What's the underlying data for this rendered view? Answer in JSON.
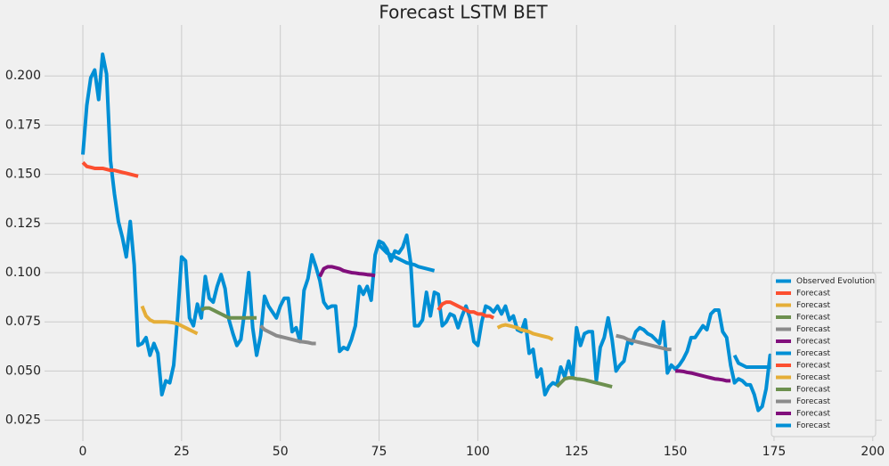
{
  "chart_data": {
    "type": "line",
    "title": "Forecast LSTM BET",
    "xlim": [
      -9.7,
      202.3
    ],
    "xticks": [
      0,
      25,
      50,
      75,
      100,
      125,
      150,
      175,
      200
    ],
    "ylim": [
      0.0144,
      0.2259
    ],
    "yticks": [
      0.025,
      {
        "value": 0.05,
        "label": "0.050"
      },
      0.075,
      {
        "value": 0.1,
        "label": "0.100"
      },
      0.125,
      {
        "value": 0.15,
        "label": "0.150"
      },
      0.175,
      {
        "value": 0.2,
        "label": "0.200"
      }
    ],
    "grid": true,
    "legend": "lower right",
    "series": [
      {
        "name": "Observed Evolution",
        "color": "#008fd5",
        "x": [
          0,
          1,
          2,
          3,
          4,
          5,
          6,
          7,
          8,
          9,
          10,
          11,
          12,
          13,
          14,
          15,
          16,
          17,
          18,
          19,
          20,
          21,
          22,
          23,
          24,
          25,
          26,
          27,
          28,
          29,
          30,
          31,
          32,
          33,
          34,
          35,
          36,
          37,
          38,
          39,
          40,
          41,
          42,
          43,
          44,
          45,
          46,
          47,
          48,
          49,
          50,
          51,
          52,
          53,
          54,
          55,
          56,
          57,
          58,
          59,
          60,
          61,
          62,
          63,
          64,
          65,
          66,
          67,
          68,
          69,
          70,
          71,
          72,
          73,
          74,
          75,
          76,
          77,
          78,
          79,
          80,
          81,
          82,
          83,
          84,
          85,
          86,
          87,
          88,
          89,
          90,
          91,
          92,
          93,
          94,
          95,
          96,
          97,
          98,
          99,
          100,
          101,
          102,
          103,
          104,
          105,
          106,
          107,
          108,
          109,
          110,
          111,
          112,
          113,
          114,
          115,
          116,
          117,
          118,
          119,
          120,
          121,
          122,
          123,
          124,
          125,
          126,
          127,
          128,
          129,
          130,
          131,
          132,
          133,
          134,
          135,
          136,
          137,
          138,
          139,
          140,
          141,
          142,
          143,
          144,
          145,
          146,
          147,
          148,
          149,
          150,
          151,
          152,
          153,
          154,
          155,
          156,
          157,
          158,
          159,
          160,
          161,
          162,
          163,
          164,
          165,
          166,
          167,
          168,
          169,
          170,
          171,
          172,
          173,
          174,
          175,
          176,
          177,
          178,
          179,
          180,
          181,
          182,
          183,
          184,
          185,
          186,
          187,
          188,
          189,
          190,
          191,
          192
        ],
        "values": [
          0.16,
          0.185,
          0.199,
          0.203,
          0.188,
          0.211,
          0.201,
          0.157,
          0.14,
          0.126,
          0.118,
          0.108,
          0.126,
          0.104,
          0.063,
          0.064,
          0.067,
          0.058,
          0.064,
          0.059,
          0.038,
          0.045,
          0.044,
          0.053,
          0.078,
          0.108,
          0.106,
          0.077,
          0.073,
          0.084,
          0.077,
          0.098,
          0.087,
          0.085,
          0.093,
          0.099,
          0.092,
          0.076,
          0.069,
          0.063,
          0.066,
          0.081,
          0.1,
          0.072,
          0.058,
          0.068,
          0.088,
          0.083,
          0.08,
          0.077,
          0.083,
          0.087,
          0.087,
          0.07,
          0.072,
          0.065,
          0.091,
          0.097,
          0.109,
          0.103,
          0.096,
          0.085,
          0.082,
          0.083,
          0.083,
          0.06,
          0.062,
          0.061,
          0.066,
          0.073,
          0.093,
          0.089,
          0.093,
          0.086,
          0.109,
          0.116,
          0.115,
          0.112,
          0.106,
          0.111,
          0.11,
          0.113,
          0.119,
          0.105,
          0.073,
          0.073,
          0.076,
          0.09,
          0.078,
          0.09,
          0.089,
          0.073,
          0.075,
          0.079,
          0.078,
          0.072,
          0.078,
          0.083,
          0.077,
          0.065,
          0.063,
          0.075,
          0.083,
          0.082,
          0.08,
          0.083,
          0.079,
          0.083,
          0.076,
          0.078,
          0.071,
          0.07,
          0.076,
          0.059,
          0.061,
          0.047,
          0.051,
          0.038,
          0.042,
          0.044,
          0.043,
          0.052,
          0.047,
          0.055,
          0.047,
          0.072,
          0.063,
          0.069,
          0.07,
          0.07,
          0.045,
          0.062,
          0.067,
          0.077,
          0.066,
          0.05,
          0.053,
          0.055,
          0.065,
          0.064,
          0.07,
          0.072,
          0.071,
          0.069,
          0.068,
          0.066,
          0.064,
          0.075,
          0.049,
          0.053,
          0.051,
          0.053,
          0.056,
          0.06,
          0.067,
          0.067,
          0.07,
          0.073,
          0.071,
          0.079,
          0.081,
          0.081,
          0.07,
          0.067,
          0.053,
          0.044,
          0.046,
          0.045,
          0.043,
          0.043,
          0.038,
          0.03,
          0.032,
          0.041,
          0.058,
          0.05,
          0.036,
          0.039,
          0.044,
          0.05,
          0.054,
          0.053,
          0.06,
          0.058,
          0.059,
          0.06,
          0.064,
          0.052,
          0.044,
          0.042,
          0.038,
          0.036,
          0.025
        ]
      },
      {
        "name": "Forecast",
        "color": "#fc4f30",
        "x": [
          0,
          1,
          2,
          3,
          4,
          5,
          6,
          7,
          8,
          9,
          10,
          11,
          12,
          13,
          14
        ],
        "values": [
          0.156,
          0.154,
          0.1535,
          0.153,
          0.153,
          0.153,
          0.1525,
          0.152,
          0.152,
          0.1515,
          0.151,
          0.1505,
          0.15,
          0.1495,
          0.149
        ]
      },
      {
        "name": "Forecast",
        "color": "#e5ae38",
        "x": [
          15,
          16,
          17,
          18,
          19,
          20,
          21,
          22,
          23,
          24,
          25,
          26,
          27,
          28,
          29
        ],
        "values": [
          0.083,
          0.078,
          0.076,
          0.075,
          0.075,
          0.075,
          0.075,
          0.0748,
          0.0745,
          0.074,
          0.073,
          0.072,
          0.071,
          0.07,
          0.069
        ]
      },
      {
        "name": "Forecast",
        "color": "#6d904f",
        "x": [
          30,
          31,
          32,
          33,
          34,
          35,
          36,
          37,
          38,
          39,
          40,
          41,
          42,
          43,
          44
        ],
        "values": [
          0.081,
          0.082,
          0.082,
          0.081,
          0.08,
          0.079,
          0.078,
          0.077,
          0.077,
          0.077,
          0.077,
          0.077,
          0.077,
          0.077,
          0.077
        ]
      },
      {
        "name": "Forecast",
        "color": "#8b8b8b",
        "x": [
          45,
          46,
          47,
          48,
          49,
          50,
          51,
          52,
          53,
          54,
          55,
          56,
          57,
          58,
          59
        ],
        "values": [
          0.073,
          0.071,
          0.07,
          0.069,
          0.068,
          0.0675,
          0.067,
          0.0665,
          0.066,
          0.0655,
          0.065,
          0.0648,
          0.0645,
          0.064,
          0.064
        ]
      },
      {
        "name": "Forecast",
        "color": "#810f7c",
        "x": [
          60,
          61,
          62,
          63,
          64,
          65,
          66,
          67,
          68,
          69,
          70,
          71,
          72,
          73,
          74
        ],
        "values": [
          0.098,
          0.102,
          0.103,
          0.103,
          0.1025,
          0.102,
          0.101,
          0.1005,
          0.1,
          0.0998,
          0.0995,
          0.0993,
          0.099,
          0.0988,
          0.0985
        ]
      },
      {
        "name": "Forecast",
        "color": "#008fd5",
        "x": [
          75,
          76,
          77,
          78,
          79,
          80,
          81,
          82,
          83,
          84,
          85,
          86,
          87,
          88,
          89
        ],
        "values": [
          0.114,
          0.112,
          0.11,
          0.109,
          0.108,
          0.107,
          0.106,
          0.105,
          0.1045,
          0.104,
          0.103,
          0.1025,
          0.102,
          0.1015,
          0.101
        ]
      },
      {
        "name": "Forecast",
        "color": "#fc4f30",
        "x": [
          90,
          91,
          92,
          93,
          94,
          95,
          96,
          97,
          98,
          99,
          100,
          101,
          102,
          103,
          104
        ],
        "values": [
          0.081,
          0.084,
          0.085,
          0.085,
          0.084,
          0.083,
          0.082,
          0.081,
          0.08,
          0.08,
          0.079,
          0.079,
          0.078,
          0.078,
          0.077
        ]
      },
      {
        "name": "Forecast",
        "color": "#e5ae38",
        "x": [
          105,
          106,
          107,
          108,
          109,
          110,
          111,
          112,
          113,
          114,
          115,
          116,
          117,
          118,
          119
        ],
        "values": [
          0.072,
          0.073,
          0.0735,
          0.073,
          0.0725,
          0.072,
          0.071,
          0.0705,
          0.07,
          0.069,
          0.0685,
          0.068,
          0.0675,
          0.067,
          0.066
        ]
      },
      {
        "name": "Forecast",
        "color": "#6d904f",
        "x": [
          120,
          121,
          122,
          123,
          124,
          125,
          126,
          127,
          128,
          129,
          130,
          131,
          132,
          133,
          134
        ],
        "values": [
          0.042,
          0.044,
          0.046,
          0.0465,
          0.0465,
          0.046,
          0.0458,
          0.0455,
          0.045,
          0.0445,
          0.044,
          0.0435,
          0.043,
          0.0425,
          0.042
        ]
      },
      {
        "name": "Forecast",
        "color": "#8b8b8b",
        "x": [
          135,
          136,
          137,
          138,
          139,
          140,
          141,
          142,
          143,
          144,
          145,
          146,
          147,
          148,
          149
        ],
        "values": [
          0.068,
          0.0675,
          0.067,
          0.066,
          0.0655,
          0.065,
          0.0645,
          0.064,
          0.0635,
          0.063,
          0.0625,
          0.062,
          0.0615,
          0.061,
          0.061
        ]
      },
      {
        "name": "Forecast",
        "color": "#810f7c",
        "x": [
          150,
          151,
          152,
          153,
          154,
          155,
          156,
          157,
          158,
          159,
          160,
          161,
          162,
          163,
          164
        ],
        "values": [
          0.05,
          0.05,
          0.0498,
          0.0493,
          0.049,
          0.0485,
          0.048,
          0.0475,
          0.047,
          0.0465,
          0.046,
          0.0458,
          0.0455,
          0.045,
          0.045
        ]
      },
      {
        "name": "Forecast",
        "color": "#008fd5",
        "x": [
          165,
          166,
          167,
          168,
          169,
          170,
          171,
          172,
          173,
          174,
          175,
          176,
          177,
          178,
          179
        ],
        "values": [
          0.058,
          0.054,
          0.053,
          0.052,
          0.052,
          0.052,
          0.052,
          0.052,
          0.052,
          0.052,
          0.0518,
          0.0515,
          0.051,
          0.0505,
          0.05
        ]
      }
    ]
  }
}
